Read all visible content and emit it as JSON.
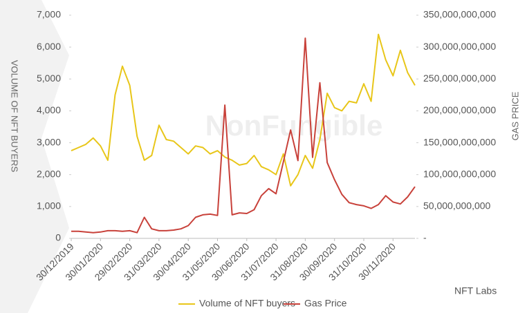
{
  "chart_data": {
    "type": "line",
    "watermark": "NonFungible",
    "badge": "NFT Labs",
    "categories": [
      "30/12/2019",
      null,
      null,
      null,
      "30/01/2020",
      null,
      null,
      null,
      "29/02/2020",
      null,
      null,
      null,
      "31/03/2020",
      null,
      null,
      null,
      "30/04/2020",
      null,
      null,
      null,
      "31/05/2020",
      null,
      null,
      null,
      "30/06/2020",
      null,
      null,
      null,
      "31/07/2020",
      null,
      null,
      null,
      "31/08/2020",
      null,
      null,
      null,
      "30/09/2020",
      null,
      null,
      null,
      "31/10/2020",
      null,
      null,
      null,
      "30/11/2020",
      null,
      null,
      null
    ],
    "y_label": "VOLUME OF NFT BUYERS",
    "y2_label": "GAS PRICE",
    "ylim": [
      0,
      7000
    ],
    "yticks": [
      0,
      {
        "value": 1000,
        "label": "1,000"
      },
      {
        "value": 2000,
        "label": "2,000"
      },
      {
        "value": 3000,
        "label": "3,000"
      },
      {
        "value": 4000,
        "label": "4,000"
      },
      {
        "value": 5000,
        "label": "5,000"
      },
      {
        "value": 6000,
        "label": "6,000"
      },
      {
        "value": 7000,
        "label": "7,000"
      }
    ],
    "y2lim": [
      0,
      350000000000
    ],
    "y2ticks": [
      {
        "value": 0,
        "label": "-"
      },
      {
        "value": 50000000000,
        "label": "50,000,000,000"
      },
      {
        "value": 100000000000,
        "label": "100,000,000,000"
      },
      {
        "value": 150000000000,
        "label": "150,000,000,000"
      },
      {
        "value": 200000000000,
        "label": "200,000,000,000"
      },
      {
        "value": 250000000000,
        "label": "250,000,000,000"
      },
      {
        "value": 300000000000,
        "label": "300,000,000,000"
      },
      {
        "value": 350000000000,
        "label": "350,000,000,000"
      }
    ],
    "legend": "bottom",
    "series": [
      {
        "name": "Volume of NFT buyers",
        "color": "#e8c619",
        "values": [
          2750,
          2850,
          2950,
          3150,
          2900,
          2450,
          4500,
          5400,
          4800,
          3200,
          2450,
          2600,
          3550,
          3100,
          3050,
          2850,
          2650,
          2900,
          2850,
          2650,
          2750,
          2550,
          2450,
          2300,
          2350,
          2600,
          2250,
          2150,
          2000,
          2650,
          1650,
          2000,
          2600,
          2200,
          3100,
          4550,
          4100,
          4000,
          4300,
          4250,
          4850,
          4300,
          6400,
          5600,
          5100,
          5900,
          5200,
          4800
        ]
      },
      {
        "name": "Gas Price",
        "color": "#c8413a",
        "axis": "y2",
        "values": [
          11000000000,
          11000000000,
          10000000000,
          9000000000,
          10000000000,
          12000000000,
          12000000000,
          11000000000,
          12000000000,
          9000000000,
          33000000000,
          15000000000,
          12000000000,
          12000000000,
          13000000000,
          15000000000,
          20000000000,
          33000000000,
          37000000000,
          38000000000,
          36000000000,
          209000000000,
          37000000000,
          40000000000,
          39000000000,
          45000000000,
          67000000000,
          78000000000,
          70000000000,
          120000000000,
          170000000000,
          122000000000,
          314000000000,
          127000000000,
          244000000000,
          119000000000,
          92000000000,
          69000000000,
          56000000000,
          53000000000,
          51000000000,
          47000000000,
          53000000000,
          67000000000,
          57000000000,
          54000000000,
          65000000000,
          81000000000
        ]
      }
    ]
  }
}
